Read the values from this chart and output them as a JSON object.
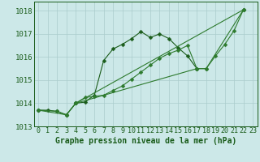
{
  "background_color": "#cce8e8",
  "grid_color": "#aacccc",
  "line_color_dark": "#1a5c1a",
  "line_color_med": "#2d7a2d",
  "xlabel": "Graphe pression niveau de la mer (hPa)",
  "ylim": [
    1013,
    1018.4
  ],
  "xlim": [
    -0.5,
    23.5
  ],
  "yticks": [
    1013,
    1014,
    1015,
    1016,
    1017,
    1018
  ],
  "line1_x": [
    0,
    1,
    2,
    3,
    4,
    5,
    6,
    7,
    8,
    9,
    10,
    11,
    12,
    13,
    14,
    15,
    16,
    17
  ],
  "line1_y": [
    1013.7,
    1013.7,
    1013.65,
    1013.5,
    1014.0,
    1014.05,
    1014.35,
    1015.85,
    1016.35,
    1016.55,
    1016.8,
    1017.1,
    1016.85,
    1017.0,
    1016.8,
    1016.4,
    1016.05,
    1015.5
  ],
  "line2_x": [
    0,
    2,
    3,
    4,
    5,
    6,
    7,
    8,
    9,
    10,
    11,
    12,
    13,
    14,
    15,
    16,
    17,
    18,
    19,
    20,
    21,
    22
  ],
  "line2_y": [
    1013.7,
    1013.65,
    1013.5,
    1014.0,
    1014.25,
    1014.3,
    1014.35,
    1014.55,
    1014.75,
    1015.05,
    1015.35,
    1015.65,
    1015.95,
    1016.15,
    1016.3,
    1016.5,
    1015.5,
    1015.5,
    1016.05,
    1016.55,
    1017.15,
    1018.05
  ],
  "line3_x": [
    0,
    3,
    4,
    17,
    18,
    22
  ],
  "line3_y": [
    1013.7,
    1013.5,
    1014.0,
    1015.5,
    1015.5,
    1018.05
  ],
  "line4_x": [
    4,
    22
  ],
  "line4_y": [
    1014.0,
    1018.05
  ],
  "markersize": 2.5,
  "linewidth": 0.8,
  "tick_fontsize": 6,
  "ylabel_fontsize": 6.5,
  "xlabel_fontsize": 7
}
